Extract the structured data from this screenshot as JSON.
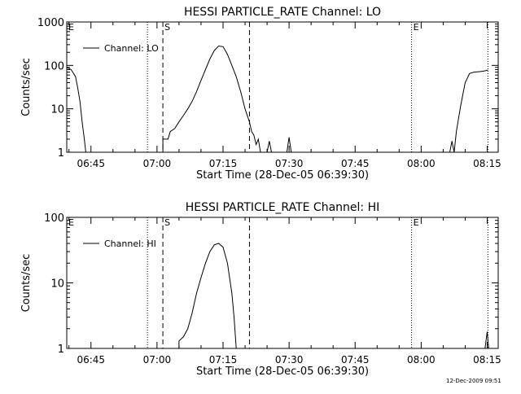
{
  "footer": {
    "timestamp": "12-Dec-2009 09:51"
  },
  "colors": {
    "background": "#ffffff",
    "foreground": "#000000"
  },
  "chart_data": [
    {
      "type": "line",
      "title": "HESSI PARTICLE_RATE Channel: LO",
      "xlabel": "Start Time (28-Dec-05 06:39:30)",
      "ylabel": "Counts/sec",
      "y_scale": "log",
      "xlim": [
        "06:39:30",
        "08:17:30"
      ],
      "ylim": [
        1,
        1000
      ],
      "x_ticks": [
        "06:45",
        "07:00",
        "07:15",
        "07:30",
        "07:45",
        "08:00",
        "08:15"
      ],
      "y_ticks": [
        {
          "v": 1,
          "label": "1"
        },
        {
          "v": 10,
          "label": "10"
        },
        {
          "v": 100,
          "label": "100"
        },
        {
          "v": 1000,
          "label": "1000"
        }
      ],
      "legend": {
        "label": "Channel: LO",
        "position": "top-left"
      },
      "markers": [
        {
          "time": "06:39:30",
          "label": "E",
          "style": "dotted"
        },
        {
          "time": "06:57:50",
          "label": "",
          "style": "dotted"
        },
        {
          "time": "07:01:20",
          "label": "S",
          "style": "dashed"
        },
        {
          "time": "07:21:00",
          "label": "",
          "style": "dashed"
        },
        {
          "time": "07:57:50",
          "label": "E",
          "style": "dotted"
        },
        {
          "time": "08:15:10",
          "label": "",
          "style": "dotted"
        }
      ],
      "series": [
        {
          "name": "Channel: LO",
          "segments": [
            [
              [
                "06:39:30",
                90
              ],
              [
                "06:40:30",
                80
              ],
              [
                "06:41:30",
                55
              ],
              [
                "06:42:00",
                30
              ],
              [
                "06:42:30",
                15
              ],
              [
                "06:43:00",
                5
              ],
              [
                "06:43:30",
                2
              ],
              [
                "06:43:50",
                1
              ]
            ],
            [
              [
                "07:01:20",
                1
              ],
              [
                "07:01:20",
                2
              ],
              [
                "07:02:30",
                2
              ],
              [
                "07:03:00",
                3
              ],
              [
                "07:04:00",
                3.5
              ],
              [
                "07:05:00",
                5
              ],
              [
                "07:06:00",
                7
              ],
              [
                "07:07:00",
                10
              ],
              [
                "07:08:00",
                15
              ],
              [
                "07:09:00",
                25
              ],
              [
                "07:10:00",
                45
              ],
              [
                "07:11:00",
                80
              ],
              [
                "07:12:00",
                140
              ],
              [
                "07:13:00",
                220
              ],
              [
                "07:14:00",
                280
              ],
              [
                "07:15:00",
                270
              ],
              [
                "07:16:00",
                180
              ],
              [
                "07:17:00",
                100
              ],
              [
                "07:18:00",
                55
              ],
              [
                "07:19:00",
                25
              ],
              [
                "07:20:00",
                10
              ],
              [
                "07:21:00",
                5
              ],
              [
                "07:21:30",
                3
              ],
              [
                "07:22:00",
                2.5
              ],
              [
                "07:22:30",
                1.5
              ],
              [
                "07:23:00",
                2
              ],
              [
                "07:23:30",
                1
              ]
            ],
            [
              [
                "07:25:00",
                1
              ],
              [
                "07:25:30",
                1.8
              ],
              [
                "07:26:00",
                1
              ]
            ],
            [
              [
                "07:29:30",
                1
              ],
              [
                "07:30:00",
                2.2
              ],
              [
                "07:30:30",
                1
              ]
            ],
            [
              [
                "08:06:30",
                1
              ],
              [
                "08:07:00",
                1.8
              ],
              [
                "08:07:30",
                1
              ],
              [
                "08:08:00",
                3
              ],
              [
                "08:09:00",
                12
              ],
              [
                "08:10:00",
                40
              ],
              [
                "08:11:00",
                65
              ],
              [
                "08:12:00",
                70
              ],
              [
                "08:13:30",
                72
              ],
              [
                "08:14:30",
                75
              ],
              [
                "08:15:10",
                78
              ]
            ]
          ]
        }
      ]
    },
    {
      "type": "line",
      "title": "HESSI PARTICLE_RATE Channel: HI",
      "xlabel": "Start Time (28-Dec-05 06:39:30)",
      "ylabel": "Counts/sec",
      "y_scale": "log",
      "xlim": [
        "06:39:30",
        "08:17:30"
      ],
      "ylim": [
        1,
        100
      ],
      "x_ticks": [
        "06:45",
        "07:00",
        "07:15",
        "07:30",
        "07:45",
        "08:00",
        "08:15"
      ],
      "y_ticks": [
        {
          "v": 1,
          "label": "1"
        },
        {
          "v": 10,
          "label": "10"
        },
        {
          "v": 100,
          "label": "100"
        }
      ],
      "legend": {
        "label": "Channel: HI",
        "position": "top-left"
      },
      "markers": [
        {
          "time": "06:39:30",
          "label": "E",
          "style": "dotted"
        },
        {
          "time": "06:57:50",
          "label": "",
          "style": "dotted"
        },
        {
          "time": "07:01:20",
          "label": "S",
          "style": "dashed"
        },
        {
          "time": "07:21:00",
          "label": "",
          "style": "dashed"
        },
        {
          "time": "07:57:50",
          "label": "E",
          "style": "dotted"
        },
        {
          "time": "08:15:10",
          "label": "",
          "style": "dotted"
        }
      ],
      "series": [
        {
          "name": "Channel: HI",
          "segments": [
            [
              [
                "07:05:00",
                1
              ],
              [
                "07:05:00",
                1.3
              ],
              [
                "07:06:00",
                1.5
              ],
              [
                "07:07:00",
                2
              ],
              [
                "07:08:00",
                3.5
              ],
              [
                "07:09:00",
                7
              ],
              [
                "07:10:00",
                12
              ],
              [
                "07:11:00",
                20
              ],
              [
                "07:12:00",
                30
              ],
              [
                "07:13:00",
                38
              ],
              [
                "07:14:00",
                40
              ],
              [
                "07:15:00",
                35
              ],
              [
                "07:16:00",
                20
              ],
              [
                "07:17:00",
                7
              ],
              [
                "07:17:30",
                3
              ],
              [
                "07:18:00",
                1
              ]
            ],
            [
              [
                "08:14:30",
                1
              ],
              [
                "08:15:00",
                1.8
              ],
              [
                "08:15:20",
                1
              ]
            ]
          ]
        }
      ]
    }
  ]
}
